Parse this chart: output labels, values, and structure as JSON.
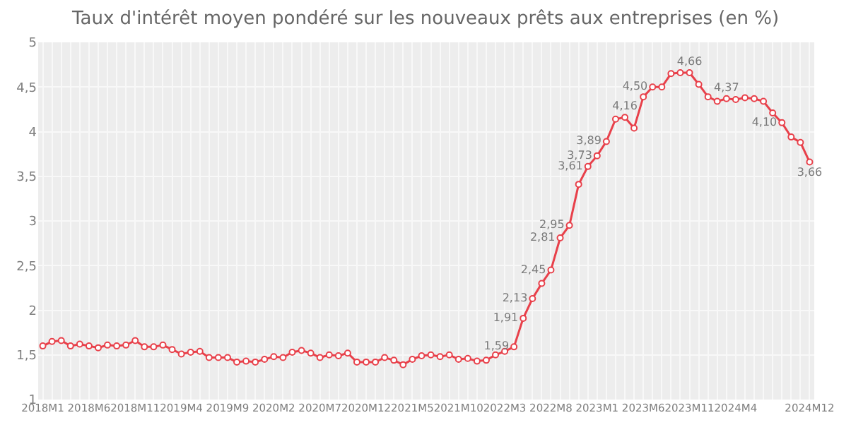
{
  "chart_data": {
    "type": "line",
    "title": "Taux d'intérêt moyen pondéré sur les nouveaux prêts aux entreprises (en %)",
    "categories": [
      "2018M1",
      null,
      null,
      null,
      null,
      "2018M6",
      null,
      null,
      null,
      null,
      "2018M11",
      null,
      null,
      null,
      null,
      "2019M4",
      null,
      null,
      null,
      null,
      "2019M9",
      null,
      null,
      null,
      null,
      "2020M2",
      null,
      null,
      null,
      null,
      "2020M7",
      null,
      null,
      null,
      null,
      "2020M12",
      null,
      null,
      null,
      null,
      "2021M5",
      null,
      null,
      null,
      null,
      "2021M10",
      null,
      null,
      null,
      null,
      "2022M3",
      null,
      null,
      null,
      null,
      "2022M8",
      null,
      null,
      null,
      null,
      "2023M1",
      null,
      null,
      null,
      null,
      "2023M6",
      null,
      null,
      null,
      null,
      "2023M11",
      null,
      null,
      null,
      null,
      "2024M4",
      null,
      null,
      null,
      null,
      null,
      null,
      null,
      "2024M12"
    ],
    "series": [
      {
        "color": "#e8404a",
        "values": [
          1.6,
          1.65,
          1.66,
          1.6,
          1.62,
          1.6,
          1.58,
          1.61,
          1.6,
          1.61,
          1.66,
          1.59,
          1.59,
          1.61,
          1.56,
          1.51,
          1.53,
          1.54,
          1.47,
          1.47,
          1.47,
          1.42,
          1.43,
          1.42,
          1.45,
          1.48,
          1.47,
          1.53,
          1.55,
          1.52,
          1.47,
          1.5,
          1.49,
          1.52,
          1.42,
          1.42,
          1.42,
          1.47,
          1.44,
          1.39,
          1.45,
          1.49,
          1.5,
          1.48,
          1.5,
          1.45,
          1.46,
          1.43,
          1.44,
          1.5,
          1.54,
          1.59,
          1.91,
          2.13,
          2.3,
          2.45,
          2.81,
          2.95,
          3.41,
          3.61,
          3.73,
          3.89,
          4.14,
          4.16,
          4.04,
          4.39,
          4.5,
          4.5,
          4.65,
          4.66,
          4.66,
          4.53,
          4.39,
          4.34,
          4.37,
          4.36,
          4.38,
          4.37,
          4.34,
          4.21,
          4.1,
          3.94,
          3.88,
          3.66
        ],
        "value_labels": [
          null,
          null,
          null,
          null,
          null,
          null,
          null,
          null,
          null,
          null,
          null,
          null,
          null,
          null,
          null,
          null,
          null,
          null,
          null,
          null,
          null,
          null,
          null,
          null,
          null,
          null,
          null,
          null,
          null,
          null,
          null,
          null,
          null,
          null,
          null,
          null,
          null,
          null,
          null,
          null,
          null,
          null,
          null,
          null,
          null,
          null,
          null,
          null,
          null,
          null,
          null,
          "1,59",
          "1,91",
          "2,13",
          null,
          "2,45",
          "2,81",
          "2,95",
          null,
          "3,61",
          "3,73",
          "3,89",
          null,
          "4,16",
          null,
          null,
          "4,50",
          null,
          null,
          null,
          "4,66",
          null,
          null,
          null,
          "4,37",
          null,
          null,
          null,
          null,
          null,
          "4,10",
          null,
          null,
          "3,66"
        ]
      }
    ],
    "ylim": [
      1,
      5
    ],
    "yticks": [
      1,
      {
        "value": 1.5,
        "label": "1,5"
      },
      2,
      {
        "value": 2.5,
        "label": "2,5"
      },
      3,
      {
        "value": 3.5,
        "label": "3,5"
      },
      4,
      {
        "value": 4.5,
        "label": "4,5"
      },
      5
    ],
    "grid": true,
    "marker": "circle",
    "line_style": "solid"
  }
}
